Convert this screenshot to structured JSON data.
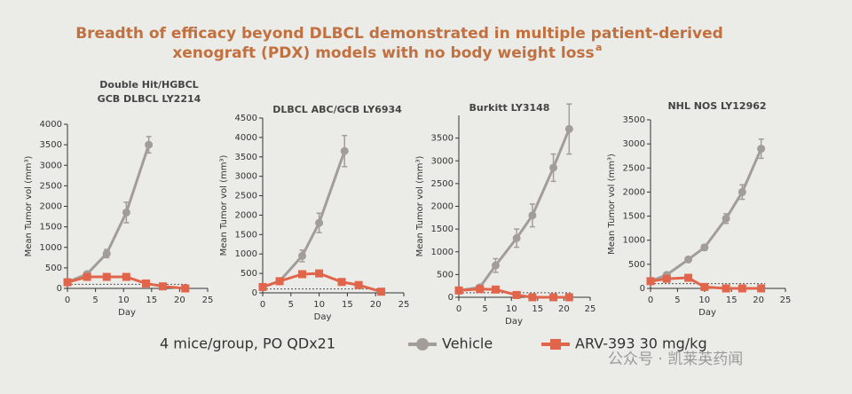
{
  "title_lines": [
    "Breadth of efficacy beyond DLBCL demonstrated in multiple patient-derived",
    "xenograft (PDX) models with no body weight loss"
  ],
  "title_superscript": "a",
  "note": "4 mice/group, PO QDx21",
  "watermark": "公众号 · 凯莱英药闻",
  "chart_data": [
    {
      "type": "line",
      "title": [
        "Double Hit/HGBCL",
        "GCB DLBCL LY2214"
      ],
      "xlabel": "Day",
      "ylabel": "Mean Tumor vol (mm³)",
      "xlim": [
        0,
        25
      ],
      "xticks": [
        0,
        5,
        10,
        15,
        20,
        25
      ],
      "ylim": [
        0,
        4000
      ],
      "yticks": [
        0,
        500,
        1000,
        1500,
        2000,
        2500,
        3000,
        3500,
        4000
      ],
      "reference_y": 100,
      "series": [
        {
          "name": "Vehicle",
          "color": "#a29d98",
          "marker": "circle",
          "x": [
            0,
            3.5,
            7,
            10.5,
            14.5
          ],
          "values": [
            150,
            350,
            850,
            1850,
            3500
          ],
          "errors": [
            30,
            50,
            100,
            250,
            200
          ]
        },
        {
          "name": "ARV-393 30 mg/kg",
          "color": "#e0654a",
          "marker": "square",
          "x": [
            0,
            3.5,
            7,
            10.5,
            14,
            17,
            21
          ],
          "values": [
            150,
            280,
            280,
            280,
            120,
            50,
            0
          ]
        }
      ]
    },
    {
      "type": "line",
      "title": [
        "DLBCL ABC/GCB LY6934"
      ],
      "xlabel": "Day",
      "ylabel": "Mean Tumor vol (mm³)",
      "xlim": [
        0,
        25
      ],
      "xticks": [
        0,
        5,
        10,
        15,
        20,
        25
      ],
      "ylim": [
        0,
        4500
      ],
      "yticks": [
        0,
        500,
        1000,
        1500,
        2000,
        2500,
        3000,
        3500,
        4000,
        4500
      ],
      "reference_y": 100,
      "series": [
        {
          "name": "Vehicle",
          "color": "#a29d98",
          "marker": "circle",
          "x": [
            0,
            3,
            7,
            10,
            14.5
          ],
          "values": [
            150,
            300,
            950,
            1800,
            3650
          ],
          "errors": [
            30,
            50,
            150,
            250,
            400
          ]
        },
        {
          "name": "ARV-393 30 mg/kg",
          "color": "#e0654a",
          "marker": "square",
          "x": [
            0,
            3,
            7,
            10,
            14,
            17,
            21
          ],
          "values": [
            150,
            300,
            480,
            500,
            280,
            200,
            30
          ]
        }
      ]
    },
    {
      "type": "line",
      "title": [
        "Burkitt LY3148"
      ],
      "xlabel": "Day",
      "ylabel": "Mean Tumor vol (mm³)",
      "xlim": [
        0,
        25
      ],
      "xticks": [
        0,
        5,
        10,
        15,
        20,
        25
      ],
      "ylim": [
        0,
        4000
      ],
      "yticks": [
        0,
        500,
        1000,
        1500,
        2000,
        2500,
        3000,
        3500
      ],
      "reference_y": 100,
      "series": [
        {
          "name": "Vehicle",
          "color": "#a29d98",
          "marker": "circle",
          "x": [
            0,
            4,
            7,
            11,
            14,
            18,
            21
          ],
          "values": [
            150,
            220,
            700,
            1300,
            1800,
            2850,
            3700
          ],
          "errors": [
            30,
            40,
            150,
            200,
            250,
            300,
            550
          ]
        },
        {
          "name": "ARV-393 30 mg/kg",
          "color": "#e0654a",
          "marker": "square",
          "x": [
            0,
            4,
            7,
            11,
            14,
            18,
            21
          ],
          "values": [
            150,
            180,
            170,
            50,
            0,
            0,
            0
          ]
        }
      ]
    },
    {
      "type": "line",
      "title": [
        "NHL NOS LY12962"
      ],
      "xlabel": "Day",
      "ylabel": "Mean Tumor vol (mm³)",
      "xlim": [
        0,
        25
      ],
      "xticks": [
        0,
        5,
        10,
        15,
        20,
        25
      ],
      "ylim": [
        0,
        3500
      ],
      "yticks": [
        0,
        500,
        1000,
        1500,
        2000,
        2500,
        3000,
        3500
      ],
      "reference_y": 100,
      "series": [
        {
          "name": "Vehicle",
          "color": "#a29d98",
          "marker": "circle",
          "x": [
            0,
            3,
            7,
            10,
            14,
            17,
            20.5
          ],
          "values": [
            150,
            280,
            600,
            850,
            1450,
            2000,
            2900
          ],
          "errors": [
            30,
            40,
            50,
            60,
            100,
            150,
            200
          ]
        },
        {
          "name": "ARV-393 30 mg/kg",
          "color": "#e0654a",
          "marker": "square",
          "x": [
            0,
            3,
            7,
            10,
            14,
            17,
            20.5
          ],
          "values": [
            150,
            200,
            220,
            30,
            0,
            0,
            0
          ]
        }
      ]
    }
  ]
}
